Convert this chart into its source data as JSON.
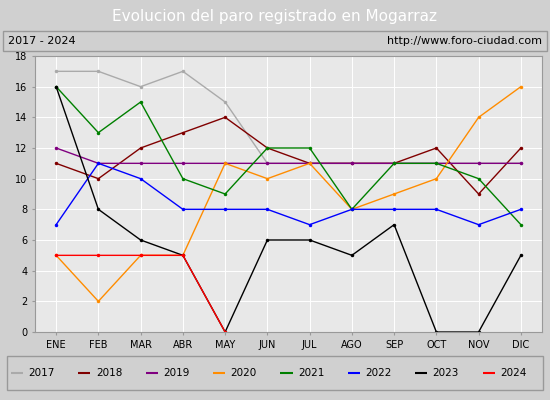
{
  "title": "Evolucion del paro registrado en Mogarraz",
  "subtitle_left": "2017 - 2024",
  "subtitle_right": "http://www.foro-ciudad.com",
  "months": [
    "ENE",
    "FEB",
    "MAR",
    "ABR",
    "MAY",
    "JUN",
    "JUL",
    "AGO",
    "SEP",
    "OCT",
    "NOV",
    "DIC"
  ],
  "series": {
    "2017": [
      17,
      17,
      16,
      17,
      15,
      11,
      11,
      11,
      11,
      11,
      11,
      11
    ],
    "2018": [
      11,
      10,
      12,
      13,
      14,
      12,
      11,
      11,
      11,
      12,
      9,
      12
    ],
    "2019": [
      12,
      11,
      11,
      11,
      11,
      11,
      11,
      11,
      11,
      11,
      11,
      11
    ],
    "2020": [
      5,
      2,
      5,
      5,
      11,
      10,
      11,
      8,
      9,
      10,
      14,
      16
    ],
    "2021": [
      16,
      13,
      15,
      10,
      9,
      12,
      12,
      8,
      11,
      11,
      10,
      7
    ],
    "2022": [
      7,
      11,
      10,
      8,
      8,
      8,
      7,
      8,
      8,
      8,
      7,
      8
    ],
    "2023": [
      16,
      8,
      6,
      5,
      0,
      6,
      6,
      5,
      7,
      0,
      0,
      5
    ],
    "2024": [
      5,
      5,
      5,
      5,
      0,
      null,
      null,
      null,
      null,
      null,
      null,
      null
    ]
  },
  "colors": {
    "2017": "#aaaaaa",
    "2018": "#800000",
    "2019": "#800080",
    "2020": "#ff8c00",
    "2021": "#008000",
    "2022": "#0000ff",
    "2023": "#000000",
    "2024": "#ff0000"
  },
  "ylim": [
    0,
    18
  ],
  "yticks": [
    0,
    2,
    4,
    6,
    8,
    10,
    12,
    14,
    16,
    18
  ],
  "bg_color": "#d0d0d0",
  "plot_bg_color": "#e8e8e8",
  "title_bg_color": "#4472c4",
  "title_text_color": "#ffffff",
  "header_bg_color": "#d0d0d0",
  "legend_bg_color": "#f0f0f0"
}
